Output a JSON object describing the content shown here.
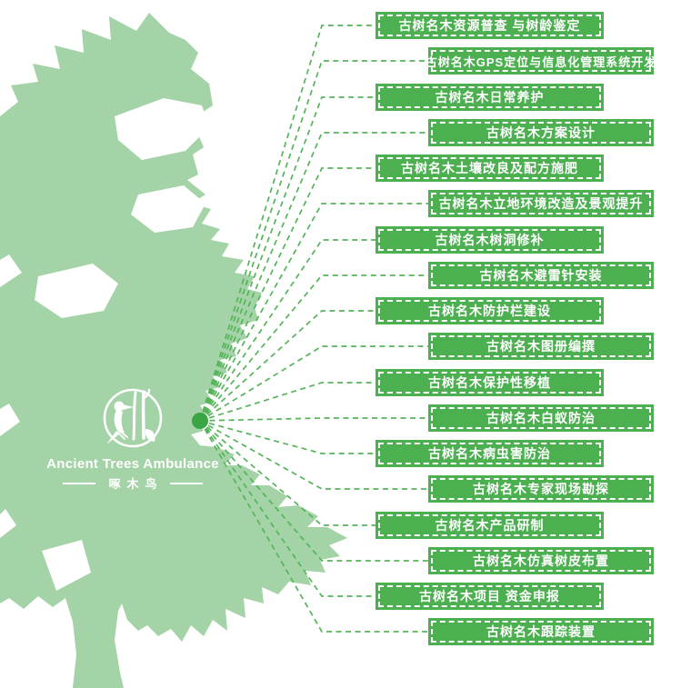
{
  "poster": {
    "colors": {
      "background": "#ffffff",
      "tree_green": "#a3d3a6",
      "label_green": "#4cb051",
      "line_green": "#55b45a",
      "hub_green": "#3aa543",
      "text_white": "#ffffff"
    },
    "logo": {
      "title": "Ancient Trees Ambulance",
      "subtitle": "啄木鸟",
      "emblem": "woodpecker-on-tree-emblem"
    },
    "services": [
      "古树名木资源普查 与树龄鉴定",
      "古树名木GPS定位与信息化管理系统开发",
      "古树名木日常养护",
      "古树名木方案设计",
      "古树名木土壤改良及配方施肥",
      "古树名木立地环境改造及景观提升",
      "古树名木树洞修补",
      "古树名木避雷针安装",
      "古树名木防护栏建设",
      "古树名木图册编撰",
      "古树名木保护性移植",
      "古树名木白蚁防治",
      "古树名木病虫害防治",
      "古树名木专家现场勘探",
      "古树名木产品研制",
      "古树名木仿真树皮布置",
      "古树名木项目 资金申报",
      "古树名木跟踪装置"
    ]
  }
}
